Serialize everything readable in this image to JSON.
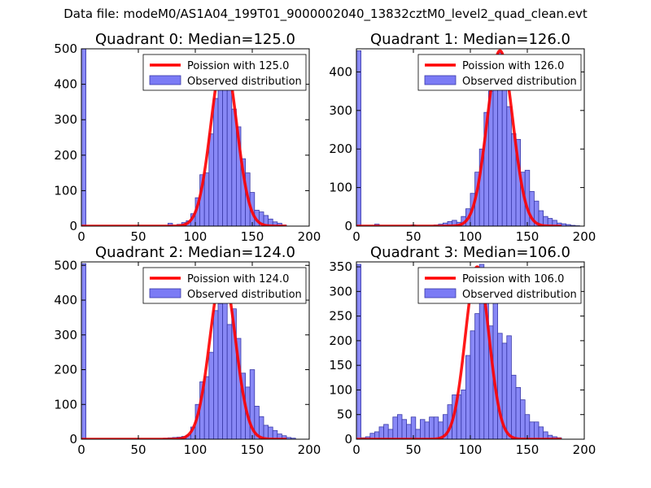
{
  "figure_title": "Data file: modeM0/AS1A04_199T01_9000002040_13832cztM0_level2_quad_clean.evt",
  "colors": {
    "hist_fill": "#7b7bf5",
    "hist_edge": "#3a3aa8",
    "fit_line": "#ff0000",
    "axes": "#000000"
  },
  "chart_data": [
    {
      "type": "bar",
      "title": "Quadrant 0: Median=125.0",
      "xlim": [
        0,
        200
      ],
      "ylim": [
        0,
        500
      ],
      "xticks": [
        0,
        50,
        100,
        150,
        200
      ],
      "yticks": [
        0,
        100,
        200,
        300,
        400,
        500
      ],
      "legend": {
        "location": "top-right",
        "entries": [
          "Poission with 125.0",
          "Observed distribution"
        ]
      },
      "bin_width": 4,
      "hist": {
        "x": [
          0,
          76,
          84,
          88,
          92,
          96,
          100,
          104,
          108,
          112,
          116,
          120,
          124,
          128,
          132,
          136,
          140,
          144,
          148,
          152,
          156,
          160,
          164,
          168,
          172,
          176
        ],
        "y": [
          500,
          8,
          5,
          10,
          15,
          35,
          80,
          145,
          150,
          260,
          360,
          390,
          480,
          410,
          330,
          280,
          190,
          150,
          95,
          45,
          40,
          30,
          20,
          12,
          8,
          3
        ]
      },
      "fit": {
        "name": "Poission with 125.0",
        "mean": 125.0,
        "peak": 480
      }
    },
    {
      "type": "bar",
      "title": "Quadrant 1: Median=126.0",
      "xlim": [
        0,
        200
      ],
      "ylim": [
        0,
        460
      ],
      "xticks": [
        0,
        50,
        100,
        150,
        200
      ],
      "yticks": [
        0,
        100,
        200,
        300,
        400
      ],
      "legend": {
        "location": "top-right",
        "entries": [
          "Poission with 126.0",
          "Observed distribution"
        ]
      },
      "bin_width": 4,
      "hist": {
        "x": [
          0,
          16,
          48,
          68,
          72,
          76,
          80,
          84,
          88,
          92,
          96,
          100,
          104,
          108,
          112,
          116,
          120,
          124,
          128,
          132,
          136,
          140,
          144,
          148,
          152,
          156,
          160,
          164,
          168,
          172,
          176,
          180,
          184,
          188,
          192
        ],
        "y": [
          455,
          5,
          3,
          3,
          5,
          8,
          12,
          15,
          10,
          25,
          45,
          85,
          140,
          200,
          295,
          350,
          375,
          450,
          400,
          310,
          240,
          225,
          140,
          145,
          90,
          65,
          40,
          25,
          20,
          15,
          8,
          6,
          4,
          2,
          1
        ]
      },
      "fit": {
        "name": "Poission with 126.0",
        "mean": 126.0,
        "peak": 455
      }
    },
    {
      "type": "bar",
      "title": "Quadrant 2: Median=124.0",
      "xlim": [
        0,
        200
      ],
      "ylim": [
        0,
        510
      ],
      "xticks": [
        0,
        50,
        100,
        150,
        200
      ],
      "yticks": [
        0,
        100,
        200,
        300,
        400,
        500
      ],
      "legend": {
        "location": "top-right",
        "entries": [
          "Poission with 124.0",
          "Observed distribution"
        ]
      },
      "bin_width": 4,
      "hist": {
        "x": [
          0,
          72,
          76,
          80,
          84,
          88,
          92,
          96,
          100,
          104,
          108,
          112,
          116,
          120,
          124,
          128,
          132,
          136,
          140,
          144,
          148,
          152,
          156,
          160,
          164,
          168,
          172,
          176,
          180,
          184
        ],
        "y": [
          505,
          3,
          4,
          5,
          6,
          8,
          12,
          35,
          100,
          165,
          180,
          250,
          370,
          390,
          480,
          330,
          375,
          290,
          190,
          150,
          200,
          95,
          65,
          40,
          35,
          25,
          15,
          10,
          5,
          3
        ]
      },
      "fit": {
        "name": "Poission with 124.0",
        "mean": 124.0,
        "peak": 480
      }
    },
    {
      "type": "bar",
      "title": "Quadrant 3: Median=106.0",
      "xlim": [
        0,
        200
      ],
      "ylim": [
        0,
        360
      ],
      "xticks": [
        0,
        50,
        100,
        150,
        200
      ],
      "yticks": [
        0,
        50,
        100,
        150,
        200,
        250,
        300,
        350
      ],
      "legend": {
        "location": "top-right",
        "entries": [
          "Poission with 106.0",
          "Observed distribution"
        ]
      },
      "bin_width": 4,
      "hist": {
        "x": [
          0,
          4,
          8,
          12,
          16,
          20,
          24,
          28,
          32,
          36,
          40,
          44,
          48,
          52,
          56,
          60,
          64,
          68,
          72,
          76,
          80,
          84,
          88,
          92,
          96,
          100,
          104,
          108,
          112,
          116,
          120,
          124,
          128,
          132,
          136,
          140,
          144,
          148,
          152,
          156,
          160,
          164,
          168,
          172,
          176
        ],
        "y": [
          355,
          3,
          5,
          12,
          15,
          25,
          30,
          20,
          45,
          50,
          40,
          30,
          45,
          20,
          40,
          35,
          45,
          45,
          35,
          50,
          70,
          90,
          90,
          100,
          170,
          220,
          255,
          355,
          290,
          230,
          280,
          215,
          195,
          210,
          130,
          105,
          80,
          50,
          35,
          35,
          25,
          15,
          8,
          5,
          3
        ]
      },
      "fit": {
        "name": "Poission with 106.0",
        "mean": 106.0,
        "peak": 350
      }
    }
  ]
}
